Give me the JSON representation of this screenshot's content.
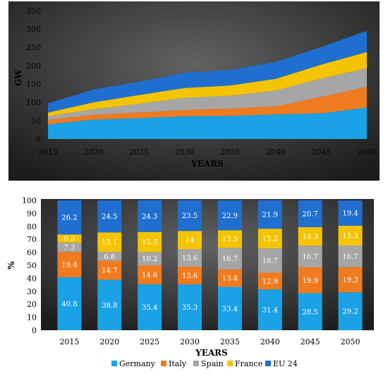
{
  "colors": {
    "Germany": "#1aa1e6",
    "Italy": "#f07b1f",
    "Spain": "#a6a6a6",
    "France": "#f5c400",
    "EU 24": "#1f6fd1",
    "panel_bg_light": "#5e5e5e",
    "panel_bg_dark": "#1f1f1f"
  },
  "chart_data": [
    {
      "type": "area",
      "stacked": true,
      "xlabel": "YEARS",
      "ylabel": "GW",
      "x": [
        2015,
        2020,
        2025,
        2030,
        2035,
        2040,
        2045,
        2050
      ],
      "ylim": [
        0,
        350
      ],
      "yticks": [
        0,
        50,
        100,
        150,
        200,
        250,
        300,
        350
      ],
      "grid": false,
      "series": [
        {
          "key": "Germany",
          "values": [
            40,
            53,
            57,
            62,
            63,
            67,
            70,
            86
          ]
        },
        {
          "key": "Italy",
          "values": [
            12,
            13,
            15,
            17,
            20,
            22,
            45,
            56
          ]
        },
        {
          "key": "Spain",
          "values": [
            10,
            15,
            24,
            33,
            35,
            43,
            50,
            51
          ]
        },
        {
          "key": "France",
          "values": [
            10,
            19,
            24,
            27,
            28,
            32,
            38,
            44
          ]
        },
        {
          "key": "EU 24",
          "values": [
            25,
            35,
            36,
            41,
            42,
            46,
            48,
            58
          ]
        }
      ]
    },
    {
      "type": "bar",
      "stacked": true,
      "xlabel": "YEARS",
      "ylabel": "%",
      "categories": [
        "2015",
        "2020",
        "2025",
        "2030",
        "2035",
        "2040",
        "2045",
        "2050"
      ],
      "ylim": [
        0,
        100
      ],
      "yticks": [
        0,
        10,
        20,
        30,
        40,
        50,
        60,
        70,
        80,
        90,
        100
      ],
      "legend_position": "bottom",
      "series": [
        {
          "name": "Germany",
          "values": [
            40.8,
            38.8,
            35.4,
            35.3,
            33.4,
            31.4,
            28.5,
            29.2
          ]
        },
        {
          "name": "Italy",
          "values": [
            19.4,
            14.7,
            14.6,
            13.6,
            13.4,
            12.9,
            19.9,
            19.3
          ]
        },
        {
          "name": "Spain",
          "values": [
            7.3,
            6.8,
            10.2,
            13.6,
            16.7,
            18.7,
            16.7,
            16.7
          ]
        },
        {
          "name": "France",
          "values": [
            6.3,
            15.1,
            15.5,
            14,
            13.5,
            15.2,
            14.3,
            15.3
          ]
        },
        {
          "name": "EU 24",
          "values": [
            26.2,
            24.5,
            24.3,
            23.5,
            22.9,
            21.9,
            20.7,
            19.4
          ]
        }
      ]
    }
  ]
}
